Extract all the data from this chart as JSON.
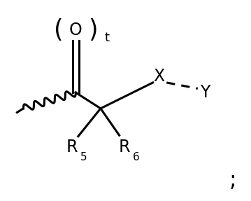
{
  "background_color": "#ffffff",
  "fig_width": 3.59,
  "fig_height": 2.87,
  "dpi": 100,
  "o_label": "O",
  "t_label": "t",
  "x_label": "X",
  "y_label": "Y",
  "r5_label": "R",
  "r5_sub": "5",
  "r6_label": "R",
  "r6_sub": "6",
  "semicolon": ";"
}
